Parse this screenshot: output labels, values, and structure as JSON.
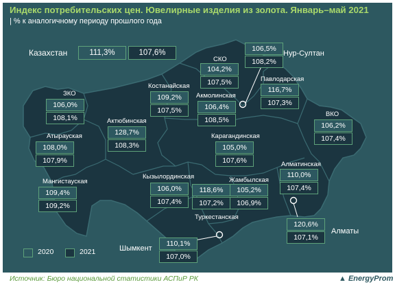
{
  "title": "Индекс потребительских цен. Ювелирные изделия из золота. Январь–май 2021",
  "subtitle": "| % к аналогичному периоду прошлого года",
  "national": {
    "name": "Казахстан",
    "v2020": "111,3%",
    "v2021": "107,6%"
  },
  "regions": [
    {
      "id": "nur-sultan",
      "name": "Нур-Султан",
      "v2020": "106,5%",
      "v2021": "108,2%"
    },
    {
      "id": "sko",
      "name": "СКО",
      "v2020": "104,2%",
      "v2021": "107,5%"
    },
    {
      "id": "kostanay",
      "name": "Костанайская",
      "v2020": "109,2%",
      "v2021": "107,5%"
    },
    {
      "id": "pavlodar",
      "name": "Павлодарская",
      "v2020": "116,7%",
      "v2021": "107,3%"
    },
    {
      "id": "akmola",
      "name": "Акмолинская",
      "v2020": "106,4%",
      "v2021": "108,5%"
    },
    {
      "id": "zko",
      "name": "ЗКО",
      "v2020": "106,0%",
      "v2021": "108,1%"
    },
    {
      "id": "aktobe",
      "name": "Актюбинская",
      "v2020": "128,7%",
      "v2021": "108,3%"
    },
    {
      "id": "vko",
      "name": "ВКО",
      "v2020": "106,2%",
      "v2021": "107,4%"
    },
    {
      "id": "atyrau",
      "name": "Атырауская",
      "v2020": "108,0%",
      "v2021": "107,9%"
    },
    {
      "id": "karaganda",
      "name": "Карагандинская",
      "v2020": "105,0%",
      "v2021": "107,6%"
    },
    {
      "id": "almaty-reg",
      "name": "Алматинская",
      "v2020": "110,0%",
      "v2021": "107,4%"
    },
    {
      "id": "mangystau",
      "name": "Мангистауская",
      "v2020": "109,4%",
      "v2021": "109,2%"
    },
    {
      "id": "kyzylorda",
      "name": "Кызылординская",
      "v2020": "106,0%",
      "v2021": "107,4%"
    },
    {
      "id": "turkestan",
      "name": "Туркестанская",
      "v2020": "118,6%",
      "v2021": "107,2%"
    },
    {
      "id": "zhambyl",
      "name": "Жамбылская",
      "v2020": "105,2%",
      "v2021": "106,9%"
    },
    {
      "id": "almaty",
      "name": "Алматы",
      "v2020": "120,6%",
      "v2021": "107,1%"
    },
    {
      "id": "shymkent",
      "name": "Шымкент",
      "v2020": "110,1%",
      "v2021": "107,0%"
    }
  ],
  "legend": {
    "l2020": "2020",
    "l2021": "2021"
  },
  "source": "Источник: Бюро национальной статистики АСПиР РК",
  "brand": "EnergyProm",
  "colors": {
    "panel": "#2d5860",
    "map": "#1b3540",
    "accent": "#a9d96b",
    "box_border": "#5ea27a",
    "source_text": "#5a9a3a"
  }
}
